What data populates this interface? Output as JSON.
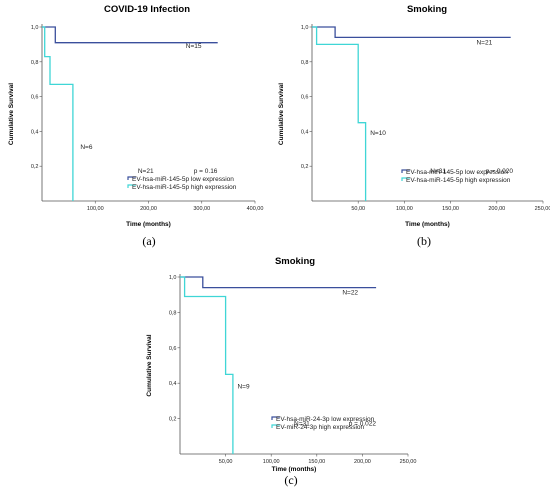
{
  "chart_data": [
    {
      "type": "line",
      "title": "COVID-19 Infection",
      "caption": "(a)",
      "xlabel": "Time (months)",
      "ylabel": "Cumulative Survival",
      "xlim": [
        0,
        400
      ],
      "ylim": [
        0,
        1.0
      ],
      "xticks": [
        "100,00",
        "200,00",
        "300,00",
        "400,00"
      ],
      "yticks": [
        "0,2",
        "0,4",
        "0,6",
        "0,8",
        "1,0"
      ],
      "series": [
        {
          "name": "EV-hsa-miR-145-5p low expression",
          "color": "#3a4f9c",
          "steps": [
            [
              0,
              1.0
            ],
            [
              25,
              1.0
            ],
            [
              25,
              0.91
            ],
            [
              330,
              0.91
            ]
          ]
        },
        {
          "name": "EV-hsa-miR-145-5p high expression",
          "color": "#3fd6d6",
          "steps": [
            [
              0,
              1.0
            ],
            [
              5,
              1.0
            ],
            [
              5,
              0.83
            ],
            [
              15,
              0.83
            ],
            [
              15,
              0.67
            ],
            [
              58,
              0.67
            ],
            [
              58,
              0.0
            ]
          ]
        }
      ],
      "annotations": [
        {
          "text": "N=15",
          "x": 270,
          "y": 0.88
        },
        {
          "text": "N=6",
          "x": 72,
          "y": 0.3
        },
        {
          "text": "N=21",
          "x": 180,
          "y": 0.16
        },
        {
          "text": "p = 0.16",
          "x": 285,
          "y": 0.16
        }
      ]
    },
    {
      "type": "line",
      "title": "Smoking",
      "caption": "(b)",
      "xlabel": "Time (months)",
      "ylabel": "Cumulative Survival",
      "xlim": [
        0,
        250
      ],
      "ylim": [
        0,
        1.0
      ],
      "xticks": [
        "50,00",
        "100,00",
        "150,00",
        "200,00",
        "250,00"
      ],
      "yticks": [
        "0,2",
        "0,4",
        "0,6",
        "0,8",
        "1,0"
      ],
      "series": [
        {
          "name": "EV-hsa-miR-145-5p low expression",
          "color": "#3a4f9c",
          "steps": [
            [
              0,
              1.0
            ],
            [
              25,
              1.0
            ],
            [
              25,
              0.94
            ],
            [
              215,
              0.94
            ]
          ]
        },
        {
          "name": "EV-hsa-miR-145-5p high expression",
          "color": "#3fd6d6",
          "steps": [
            [
              0,
              1.0
            ],
            [
              5,
              1.0
            ],
            [
              5,
              0.9
            ],
            [
              50,
              0.9
            ],
            [
              50,
              0.45
            ],
            [
              58,
              0.45
            ],
            [
              58,
              0.0
            ]
          ]
        }
      ],
      "annotations": [
        {
          "text": "N=21",
          "x": 178,
          "y": 0.9
        },
        {
          "text": "N=10",
          "x": 63,
          "y": 0.38
        },
        {
          "text": "N=31",
          "x": 128,
          "y": 0.16
        },
        {
          "text": "p = 0.020",
          "x": 188,
          "y": 0.16
        }
      ]
    },
    {
      "type": "line",
      "title": "Smoking",
      "caption": "(c)",
      "xlabel": "Time (months)",
      "ylabel": "Cumulative Survival",
      "xlim": [
        0,
        250
      ],
      "ylim": [
        0,
        1.0
      ],
      "xticks": [
        "50,00",
        "100,00",
        "150,00",
        "200,00",
        "250,00"
      ],
      "yticks": [
        "0,2",
        "0,4",
        "0,6",
        "0,8",
        "1,0"
      ],
      "series": [
        {
          "name": "EV-hsa-miR-24-3p low expression",
          "color": "#3a4f9c",
          "steps": [
            [
              0,
              1.0
            ],
            [
              25,
              1.0
            ],
            [
              25,
              0.94
            ],
            [
              215,
              0.94
            ]
          ]
        },
        {
          "name": "EV-miR-24-3p high expression",
          "color": "#3fd6d6",
          "steps": [
            [
              0,
              1.0
            ],
            [
              5,
              1.0
            ],
            [
              5,
              0.89
            ],
            [
              50,
              0.89
            ],
            [
              50,
              0.45
            ],
            [
              58,
              0.45
            ],
            [
              58,
              0.0
            ]
          ]
        }
      ],
      "annotations": [
        {
          "text": "N=22",
          "x": 178,
          "y": 0.9
        },
        {
          "text": "N=9",
          "x": 63,
          "y": 0.37
        },
        {
          "text": "N=31",
          "x": 125,
          "y": 0.16
        },
        {
          "text": "p = 0.022",
          "x": 185,
          "y": 0.16
        }
      ]
    }
  ]
}
